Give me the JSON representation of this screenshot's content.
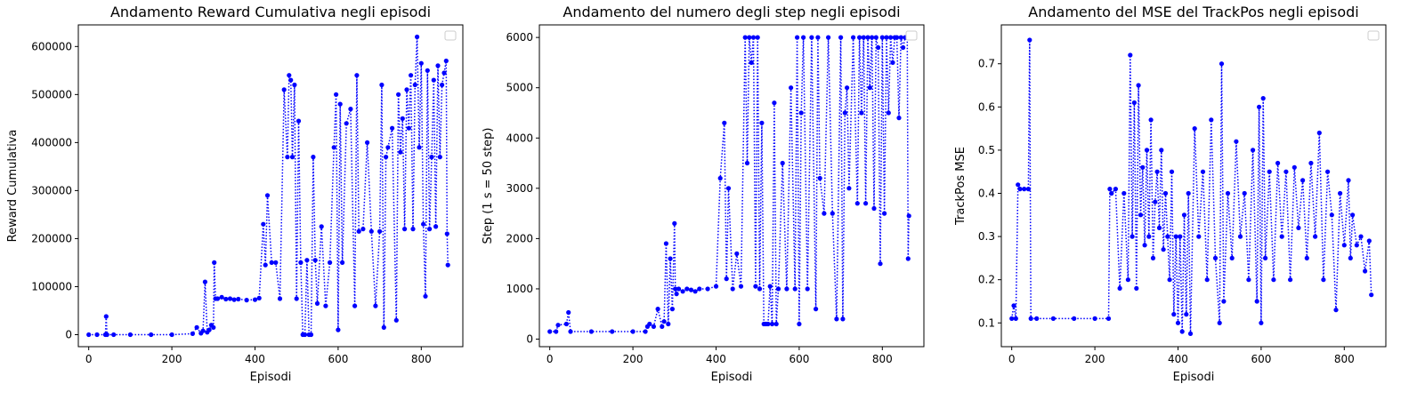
{
  "colors": {
    "series": "#0000ff",
    "axes": "#000000",
    "background": "#ffffff"
  },
  "chart_data": [
    {
      "type": "line",
      "title": "Andamento Reward Cumulativa negli episodi",
      "xlabel": "Episodi",
      "ylabel": "Reward Cumulativa",
      "xlim": [
        -25,
        900
      ],
      "ylim": [
        -25000,
        645000
      ],
      "xticks": [
        0,
        200,
        400,
        600,
        800
      ],
      "yticks": [
        0,
        100000,
        200000,
        300000,
        400000,
        500000,
        600000
      ],
      "grid": false,
      "legend": "top-right (empty)",
      "line_style": "dotted with dot markers",
      "series": [
        {
          "values_x": [
            0,
            20,
            40,
            42,
            44,
            60,
            100,
            150,
            200,
            250,
            260,
            270,
            275,
            280,
            285,
            290,
            295,
            300,
            302,
            305,
            310,
            320,
            330,
            340,
            350,
            360,
            380,
            400,
            410,
            420,
            425,
            430,
            440,
            450,
            460,
            470,
            478,
            482,
            486,
            490,
            495,
            500,
            505,
            510,
            515,
            520,
            525,
            530,
            535,
            540,
            545,
            550,
            560,
            570,
            580,
            590,
            595,
            600,
            605,
            610,
            620,
            630,
            640,
            645,
            650,
            660,
            670,
            680,
            690,
            700,
            705,
            710,
            715,
            720,
            730,
            740,
            745,
            750,
            755,
            760,
            765,
            770,
            775,
            780,
            785,
            790,
            795,
            800,
            805,
            810,
            815,
            820,
            825,
            830,
            835,
            840,
            845,
            850,
            855,
            860,
            862,
            864
          ],
          "values_y": [
            0,
            0,
            0,
            38000,
            0,
            0,
            0,
            0,
            0,
            2000,
            15000,
            3000,
            8000,
            110000,
            5000,
            10000,
            20000,
            15000,
            150000,
            75000,
            75000,
            78000,
            74000,
            75000,
            73000,
            74000,
            72000,
            73000,
            76000,
            230000,
            145000,
            290000,
            150000,
            150000,
            75000,
            510000,
            370000,
            540000,
            530000,
            370000,
            520000,
            75000,
            445000,
            150000,
            0,
            0,
            155000,
            0,
            0,
            370000,
            155000,
            65000,
            225000,
            60000,
            150000,
            390000,
            500000,
            10000,
            480000,
            150000,
            440000,
            470000,
            60000,
            540000,
            215000,
            220000,
            400000,
            215000,
            60000,
            215000,
            520000,
            15000,
            370000,
            390000,
            430000,
            30000,
            500000,
            380000,
            450000,
            220000,
            510000,
            430000,
            540000,
            220000,
            520000,
            620000,
            390000,
            565000,
            230000,
            80000,
            550000,
            220000,
            370000,
            530000,
            225000,
            560000,
            370000,
            520000,
            545000,
            570000,
            210000,
            145000
          ]
        }
      ]
    },
    {
      "type": "line",
      "title": "Andamento del numero degli step negli episodi",
      "xlabel": "Episodi",
      "ylabel": "Step (1 s = 50 step)",
      "xlim": [
        -25,
        900
      ],
      "ylim": [
        -150,
        6250
      ],
      "xticks": [
        0,
        200,
        400,
        600,
        800
      ],
      "yticks": [
        0,
        1000,
        2000,
        3000,
        4000,
        5000,
        6000
      ],
      "grid": false,
      "legend": "top-right (empty)",
      "line_style": "dotted with dot markers",
      "series": [
        {
          "values_x": [
            0,
            15,
            20,
            40,
            45,
            50,
            100,
            150,
            200,
            230,
            235,
            240,
            250,
            260,
            270,
            275,
            280,
            285,
            290,
            295,
            300,
            302,
            305,
            310,
            320,
            330,
            340,
            350,
            360,
            380,
            400,
            410,
            420,
            425,
            430,
            440,
            450,
            460,
            470,
            475,
            480,
            485,
            490,
            495,
            500,
            505,
            510,
            515,
            520,
            525,
            530,
            535,
            540,
            545,
            550,
            560,
            570,
            580,
            590,
            595,
            600,
            605,
            610,
            620,
            630,
            640,
            645,
            650,
            660,
            670,
            680,
            690,
            700,
            705,
            710,
            715,
            720,
            730,
            740,
            745,
            750,
            755,
            760,
            765,
            770,
            775,
            780,
            785,
            790,
            795,
            800,
            805,
            810,
            815,
            820,
            825,
            830,
            835,
            840,
            845,
            850,
            855,
            860,
            862,
            864
          ],
          "values_y": [
            150,
            150,
            280,
            300,
            530,
            150,
            150,
            150,
            150,
            150,
            250,
            300,
            250,
            600,
            250,
            350,
            1900,
            300,
            1600,
            600,
            2300,
            1000,
            900,
            1000,
            950,
            1000,
            980,
            950,
            1000,
            1000,
            1050,
            3200,
            4300,
            1200,
            3000,
            1000,
            1700,
            1050,
            6000,
            3500,
            6000,
            5500,
            6000,
            1050,
            6000,
            1000,
            4300,
            300,
            300,
            300,
            1050,
            300,
            4700,
            300,
            1000,
            3500,
            1000,
            5000,
            1000,
            6000,
            300,
            4500,
            6000,
            1000,
            6000,
            600,
            6000,
            3200,
            2500,
            6000,
            2500,
            400,
            6000,
            400,
            4500,
            5000,
            3000,
            6000,
            2700,
            6000,
            4500,
            6000,
            2700,
            6000,
            5000,
            6000,
            2600,
            6000,
            5800,
            1500,
            6000,
            2500,
            6000,
            4500,
            6000,
            5500,
            6000,
            6000,
            4400,
            6000,
            5800,
            6000,
            6000,
            1600,
            2450
          ]
        }
      ]
    },
    {
      "type": "line",
      "title": "Andamento del MSE del TrackPos negli episodi",
      "xlabel": "Episodi",
      "ylabel": "TrackPos MSE",
      "xlim": [
        -25,
        900
      ],
      "ylim": [
        0.045,
        0.79
      ],
      "xticks": [
        0,
        200,
        400,
        600,
        800
      ],
      "yticks": [
        0.1,
        0.2,
        0.3,
        0.4,
        0.5,
        0.6,
        0.7
      ],
      "grid": false,
      "legend": "top-right (empty)",
      "line_style": "dotted with dot markers",
      "series": [
        {
          "values_x": [
            0,
            5,
            10,
            15,
            20,
            30,
            40,
            43,
            46,
            60,
            100,
            150,
            200,
            233,
            236,
            240,
            250,
            260,
            270,
            280,
            285,
            290,
            295,
            300,
            305,
            310,
            315,
            320,
            325,
            330,
            335,
            340,
            345,
            350,
            355,
            360,
            365,
            370,
            375,
            380,
            385,
            390,
            395,
            400,
            405,
            410,
            415,
            420,
            425,
            430,
            440,
            450,
            460,
            470,
            480,
            490,
            500,
            505,
            510,
            520,
            530,
            540,
            550,
            560,
            570,
            580,
            590,
            595,
            600,
            605,
            610,
            620,
            630,
            640,
            650,
            660,
            670,
            680,
            690,
            700,
            710,
            720,
            730,
            740,
            750,
            760,
            770,
            780,
            790,
            800,
            810,
            815,
            820,
            830,
            840,
            850,
            860,
            865
          ],
          "values_y": [
            0.11,
            0.14,
            0.11,
            0.42,
            0.41,
            0.41,
            0.41,
            0.755,
            0.11,
            0.11,
            0.11,
            0.11,
            0.11,
            0.11,
            0.41,
            0.4,
            0.41,
            0.18,
            0.4,
            0.2,
            0.72,
            0.3,
            0.61,
            0.18,
            0.65,
            0.35,
            0.46,
            0.28,
            0.5,
            0.3,
            0.57,
            0.25,
            0.38,
            0.45,
            0.32,
            0.5,
            0.27,
            0.4,
            0.3,
            0.2,
            0.45,
            0.12,
            0.3,
            0.1,
            0.3,
            0.08,
            0.35,
            0.12,
            0.4,
            0.075,
            0.55,
            0.3,
            0.45,
            0.2,
            0.57,
            0.25,
            0.1,
            0.7,
            0.15,
            0.4,
            0.25,
            0.52,
            0.3,
            0.4,
            0.2,
            0.5,
            0.15,
            0.6,
            0.1,
            0.62,
            0.25,
            0.45,
            0.2,
            0.47,
            0.3,
            0.45,
            0.2,
            0.46,
            0.32,
            0.43,
            0.25,
            0.47,
            0.3,
            0.54,
            0.2,
            0.45,
            0.35,
            0.13,
            0.4,
            0.28,
            0.43,
            0.25,
            0.35,
            0.28,
            0.3,
            0.22,
            0.29,
            0.165
          ]
        }
      ]
    }
  ]
}
